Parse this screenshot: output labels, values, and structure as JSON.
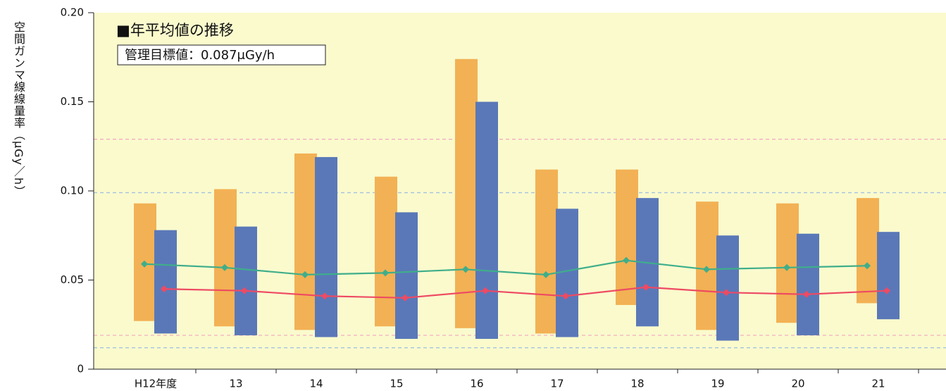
{
  "chart_data": {
    "type": "bar",
    "title": "■年平均値の推移",
    "annotation": "管理目標値：0.087μGy/h",
    "y_label": "空間ガンマ線線量率（μGy／h）",
    "categories": [
      "H12年度",
      "13",
      "14",
      "15",
      "16",
      "17",
      "18",
      "19",
      "20",
      "21"
    ],
    "series": [
      {
        "type": "range",
        "color": "#f2b154",
        "low": [
          0.027,
          0.024,
          0.022,
          0.024,
          0.023,
          0.02,
          0.036,
          0.022,
          0.026,
          0.037
        ],
        "high": [
          0.093,
          0.101,
          0.121,
          0.108,
          0.174,
          0.112,
          0.112,
          0.094,
          0.093,
          0.096
        ]
      },
      {
        "type": "range",
        "color": "#5a78b8",
        "low": [
          0.02,
          0.019,
          0.018,
          0.017,
          0.017,
          0.018,
          0.024,
          0.016,
          0.019,
          0.028
        ],
        "high": [
          0.078,
          0.08,
          0.119,
          0.088,
          0.15,
          0.09,
          0.096,
          0.075,
          0.076,
          0.077
        ]
      },
      {
        "type": "line",
        "color": "#3fae8a",
        "values": [
          0.059,
          0.057,
          0.053,
          0.054,
          0.056,
          0.053,
          0.061,
          0.056,
          0.057,
          0.058
        ]
      },
      {
        "type": "line",
        "color": "#ee4a63",
        "values": [
          0.045,
          0.044,
          0.041,
          0.04,
          0.044,
          0.041,
          0.046,
          0.043,
          0.042,
          0.044
        ]
      }
    ],
    "ref_lines": [
      {
        "value": 0.129,
        "color": "#f4a6bf"
      },
      {
        "value": 0.099,
        "color": "#9fbfe0"
      },
      {
        "value": 0.019,
        "color": "#f4a6bf"
      },
      {
        "value": 0.012,
        "color": "#9fbfe0"
      }
    ],
    "ylim": [
      0,
      0.2
    ],
    "yticks": [
      0,
      0.05,
      {
        "value": 0.1,
        "label": "0.10"
      },
      0.15,
      {
        "value": 0.2,
        "label": "0.20"
      }
    ],
    "grid": false
  }
}
